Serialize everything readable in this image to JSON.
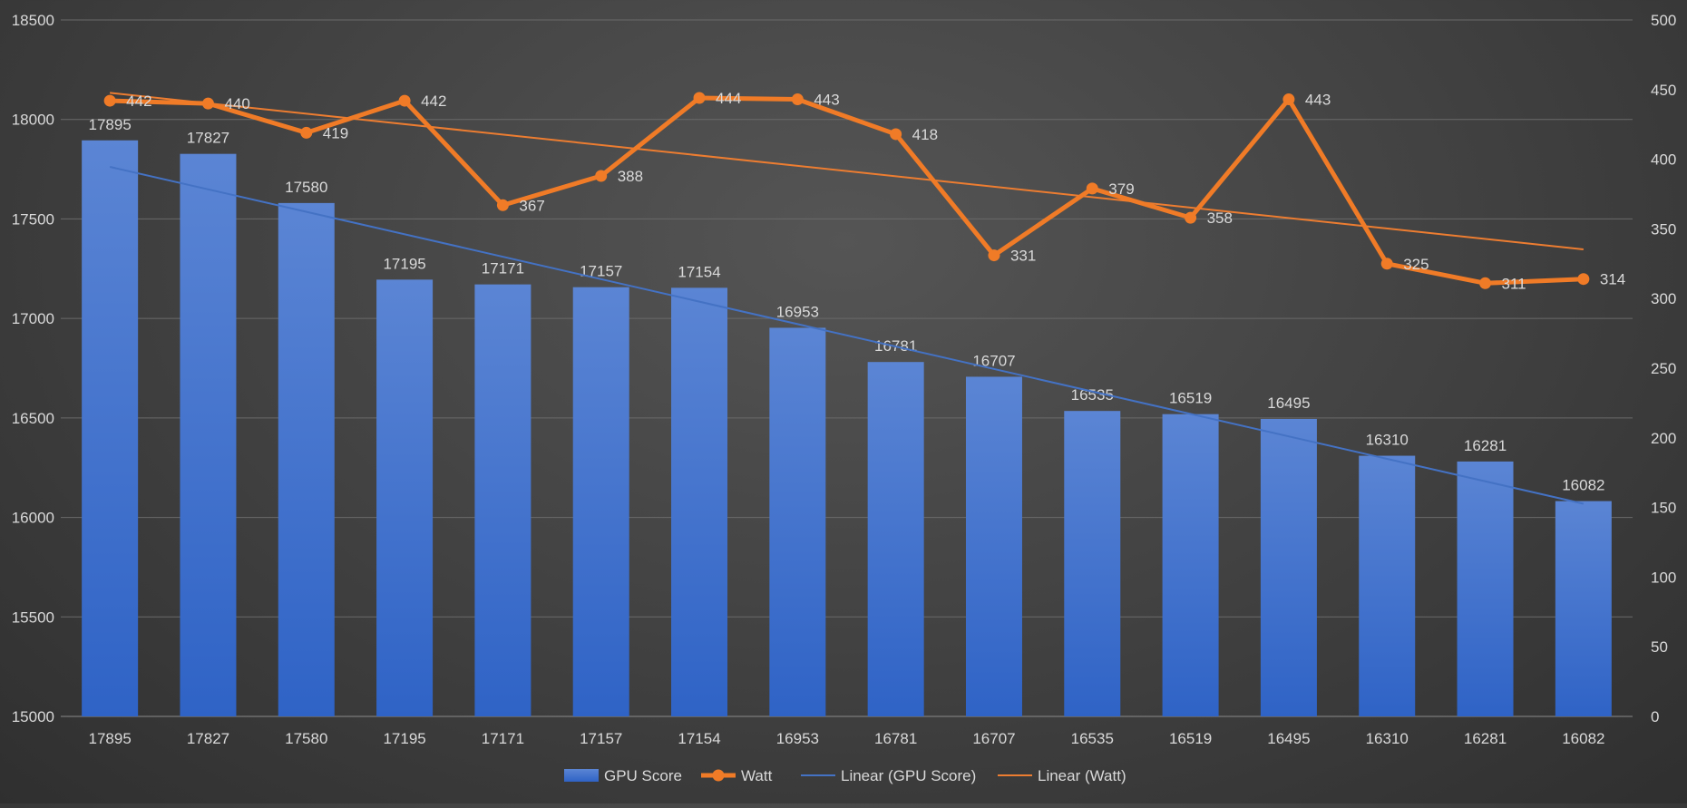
{
  "chart_data": {
    "type": "bar",
    "title": "",
    "categories": [
      "17895",
      "17827",
      "17580",
      "17195",
      "17171",
      "17157",
      "17154",
      "16953",
      "16781",
      "16707",
      "16535",
      "16519",
      "16495",
      "16310",
      "16281",
      "16082"
    ],
    "series": [
      {
        "name": "GPU Score",
        "type": "bar",
        "axis": "left",
        "values": [
          17895,
          17827,
          17580,
          17195,
          17171,
          17157,
          17154,
          16953,
          16781,
          16707,
          16535,
          16519,
          16495,
          16310,
          16281,
          16082
        ],
        "labels": [
          "17895",
          "17827",
          "17580",
          "17195",
          "17171",
          "17157",
          "17154",
          "16953",
          "16781",
          "16707",
          "16535",
          "16519",
          "16495",
          "16310",
          "16281",
          "16082"
        ]
      },
      {
        "name": "Watt",
        "type": "line",
        "axis": "right",
        "values": [
          442,
          440,
          419,
          442,
          367,
          388,
          444,
          443,
          418,
          331,
          379,
          358,
          443,
          325,
          311,
          314
        ],
        "labels": [
          "442",
          "440",
          "419",
          "442",
          "367",
          "388",
          "444",
          "443",
          "418",
          "331",
          "379",
          "358",
          "443",
          "325",
          "311",
          "314"
        ]
      },
      {
        "name": "Linear (GPU Score)",
        "type": "trendline",
        "axis": "left"
      },
      {
        "name": "Linear (Watt)",
        "type": "trendline",
        "axis": "right"
      }
    ],
    "left_axis": {
      "ylim": [
        15000,
        18500
      ],
      "ticks": [
        15000,
        15500,
        16000,
        16500,
        17000,
        17500,
        18000,
        18500
      ],
      "tick_labels": [
        "15000",
        "15500",
        "16000",
        "16500",
        "17000",
        "17500",
        "18000",
        "18500"
      ]
    },
    "right_axis": {
      "ylim": [
        0,
        500
      ],
      "ticks": [
        0,
        50,
        100,
        150,
        200,
        250,
        300,
        350,
        400,
        450,
        500
      ],
      "tick_labels": [
        "0",
        "50",
        "100",
        "150",
        "200",
        "250",
        "300",
        "350",
        "400",
        "450",
        "500"
      ]
    },
    "grid": true,
    "legend_position": "bottom"
  },
  "colors": {
    "bar_top": "#5b85d4",
    "bar_bottom": "#2f63c6",
    "watt": "#f07b27",
    "trend_gpu": "#4472c4",
    "trend_watt": "#ed7d31",
    "text": "#d9d9d9",
    "grid": "#6a6a6a"
  }
}
